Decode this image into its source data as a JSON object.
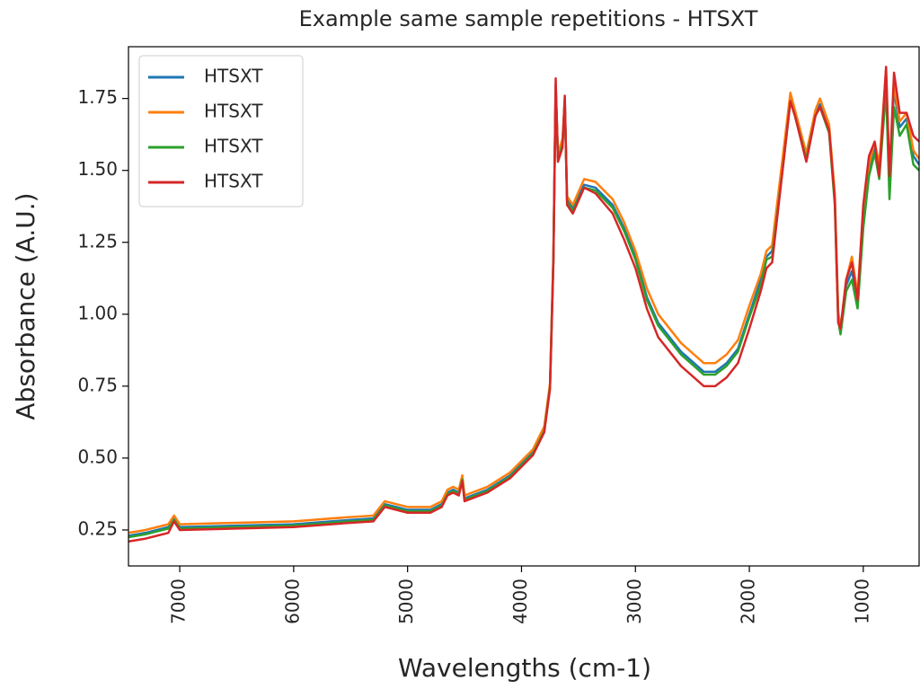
{
  "chart_data": {
    "type": "line",
    "title": "Example same sample repetitions - HTSXT",
    "xlabel": "Wavelengths (cm-1)",
    "ylabel": "Absorbance (A.U.)",
    "x": [
      7450,
      7300,
      7200,
      7100,
      7050,
      7000,
      6500,
      6000,
      5500,
      5300,
      5200,
      5100,
      5000,
      4800,
      4700,
      4650,
      4600,
      4550,
      4520,
      4500,
      4300,
      4100,
      3900,
      3800,
      3750,
      3720,
      3700,
      3680,
      3640,
      3620,
      3600,
      3550,
      3450,
      3350,
      3200,
      3100,
      3000,
      2900,
      2800,
      2600,
      2400,
      2300,
      2200,
      2100,
      2000,
      1900,
      1850,
      1800,
      1700,
      1640,
      1600,
      1500,
      1420,
      1380,
      1300,
      1250,
      1220,
      1200,
      1150,
      1100,
      1050,
      1000,
      950,
      900,
      860,
      800,
      770,
      730,
      680,
      620,
      560,
      510
    ],
    "series": [
      {
        "name": "HTSXT",
        "color": "#1f77b4",
        "values": [
          0.23,
          0.24,
          0.25,
          0.26,
          0.29,
          0.26,
          0.265,
          0.27,
          0.285,
          0.29,
          0.34,
          0.33,
          0.32,
          0.32,
          0.34,
          0.38,
          0.39,
          0.38,
          0.43,
          0.36,
          0.39,
          0.44,
          0.52,
          0.6,
          0.75,
          1.2,
          1.8,
          1.55,
          1.6,
          1.75,
          1.4,
          1.37,
          1.45,
          1.44,
          1.38,
          1.3,
          1.2,
          1.06,
          0.97,
          0.87,
          0.8,
          0.8,
          0.83,
          0.88,
          1.0,
          1.12,
          1.2,
          1.22,
          1.55,
          1.75,
          1.7,
          1.55,
          1.7,
          1.73,
          1.65,
          1.4,
          1.0,
          0.94,
          1.1,
          1.15,
          1.05,
          1.35,
          1.5,
          1.58,
          1.5,
          1.83,
          1.45,
          1.78,
          1.65,
          1.68,
          1.55,
          1.52
        ]
      },
      {
        "name": "HTSXT",
        "color": "#ff7f0e",
        "values": [
          0.24,
          0.25,
          0.26,
          0.27,
          0.3,
          0.27,
          0.275,
          0.28,
          0.295,
          0.3,
          0.35,
          0.34,
          0.33,
          0.33,
          0.35,
          0.39,
          0.4,
          0.39,
          0.44,
          0.37,
          0.4,
          0.45,
          0.53,
          0.61,
          0.76,
          1.21,
          1.79,
          1.56,
          1.61,
          1.74,
          1.41,
          1.38,
          1.47,
          1.46,
          1.4,
          1.32,
          1.22,
          1.09,
          1.0,
          0.9,
          0.83,
          0.83,
          0.86,
          0.91,
          1.03,
          1.14,
          1.22,
          1.24,
          1.57,
          1.77,
          1.71,
          1.56,
          1.71,
          1.75,
          1.66,
          1.42,
          1.01,
          0.95,
          1.12,
          1.2,
          1.07,
          1.37,
          1.52,
          1.6,
          1.52,
          1.85,
          1.47,
          1.8,
          1.67,
          1.7,
          1.57,
          1.54
        ]
      },
      {
        "name": "HTSXT",
        "color": "#2ca02c",
        "values": [
          0.225,
          0.235,
          0.245,
          0.255,
          0.285,
          0.255,
          0.26,
          0.265,
          0.28,
          0.285,
          0.335,
          0.325,
          0.315,
          0.315,
          0.335,
          0.375,
          0.385,
          0.375,
          0.425,
          0.355,
          0.385,
          0.435,
          0.515,
          0.595,
          0.745,
          1.19,
          1.78,
          1.54,
          1.59,
          1.74,
          1.39,
          1.36,
          1.44,
          1.43,
          1.37,
          1.29,
          1.19,
          1.05,
          0.96,
          0.86,
          0.79,
          0.79,
          0.82,
          0.87,
          0.99,
          1.1,
          1.19,
          1.2,
          1.53,
          1.74,
          1.69,
          1.54,
          1.69,
          1.72,
          1.63,
          1.38,
          0.98,
          0.93,
          1.08,
          1.12,
          1.02,
          1.3,
          1.48,
          1.56,
          1.47,
          1.78,
          1.4,
          1.72,
          1.62,
          1.66,
          1.52,
          1.5
        ]
      },
      {
        "name": "HTSXT",
        "color": "#d62728",
        "values": [
          0.21,
          0.22,
          0.23,
          0.24,
          0.28,
          0.25,
          0.255,
          0.26,
          0.275,
          0.28,
          0.33,
          0.32,
          0.31,
          0.31,
          0.33,
          0.37,
          0.38,
          0.37,
          0.42,
          0.35,
          0.38,
          0.43,
          0.51,
          0.59,
          0.74,
          1.18,
          1.82,
          1.53,
          1.58,
          1.76,
          1.38,
          1.35,
          1.44,
          1.42,
          1.35,
          1.26,
          1.16,
          1.02,
          0.92,
          0.82,
          0.75,
          0.75,
          0.78,
          0.83,
          0.95,
          1.08,
          1.16,
          1.18,
          1.53,
          1.74,
          1.69,
          1.53,
          1.69,
          1.72,
          1.64,
          1.4,
          0.97,
          0.95,
          1.12,
          1.18,
          1.05,
          1.38,
          1.55,
          1.6,
          1.48,
          1.86,
          1.48,
          1.84,
          1.7,
          1.7,
          1.62,
          1.6
        ]
      }
    ],
    "xlim": [
      7450,
      510
    ],
    "xticks": [
      7000,
      6000,
      5000,
      4000,
      3000,
      2000,
      1000
    ],
    "ylim": [
      0.125,
      1.93
    ],
    "yticks": [
      0.25,
      {
        "value": 0.5,
        "label": "0.50"
      },
      0.75,
      {
        "value": 1.0,
        "label": "1.00"
      },
      1.25,
      {
        "value": 1.5,
        "label": "1.50"
      },
      1.75
    ],
    "legend": "upper left"
  }
}
